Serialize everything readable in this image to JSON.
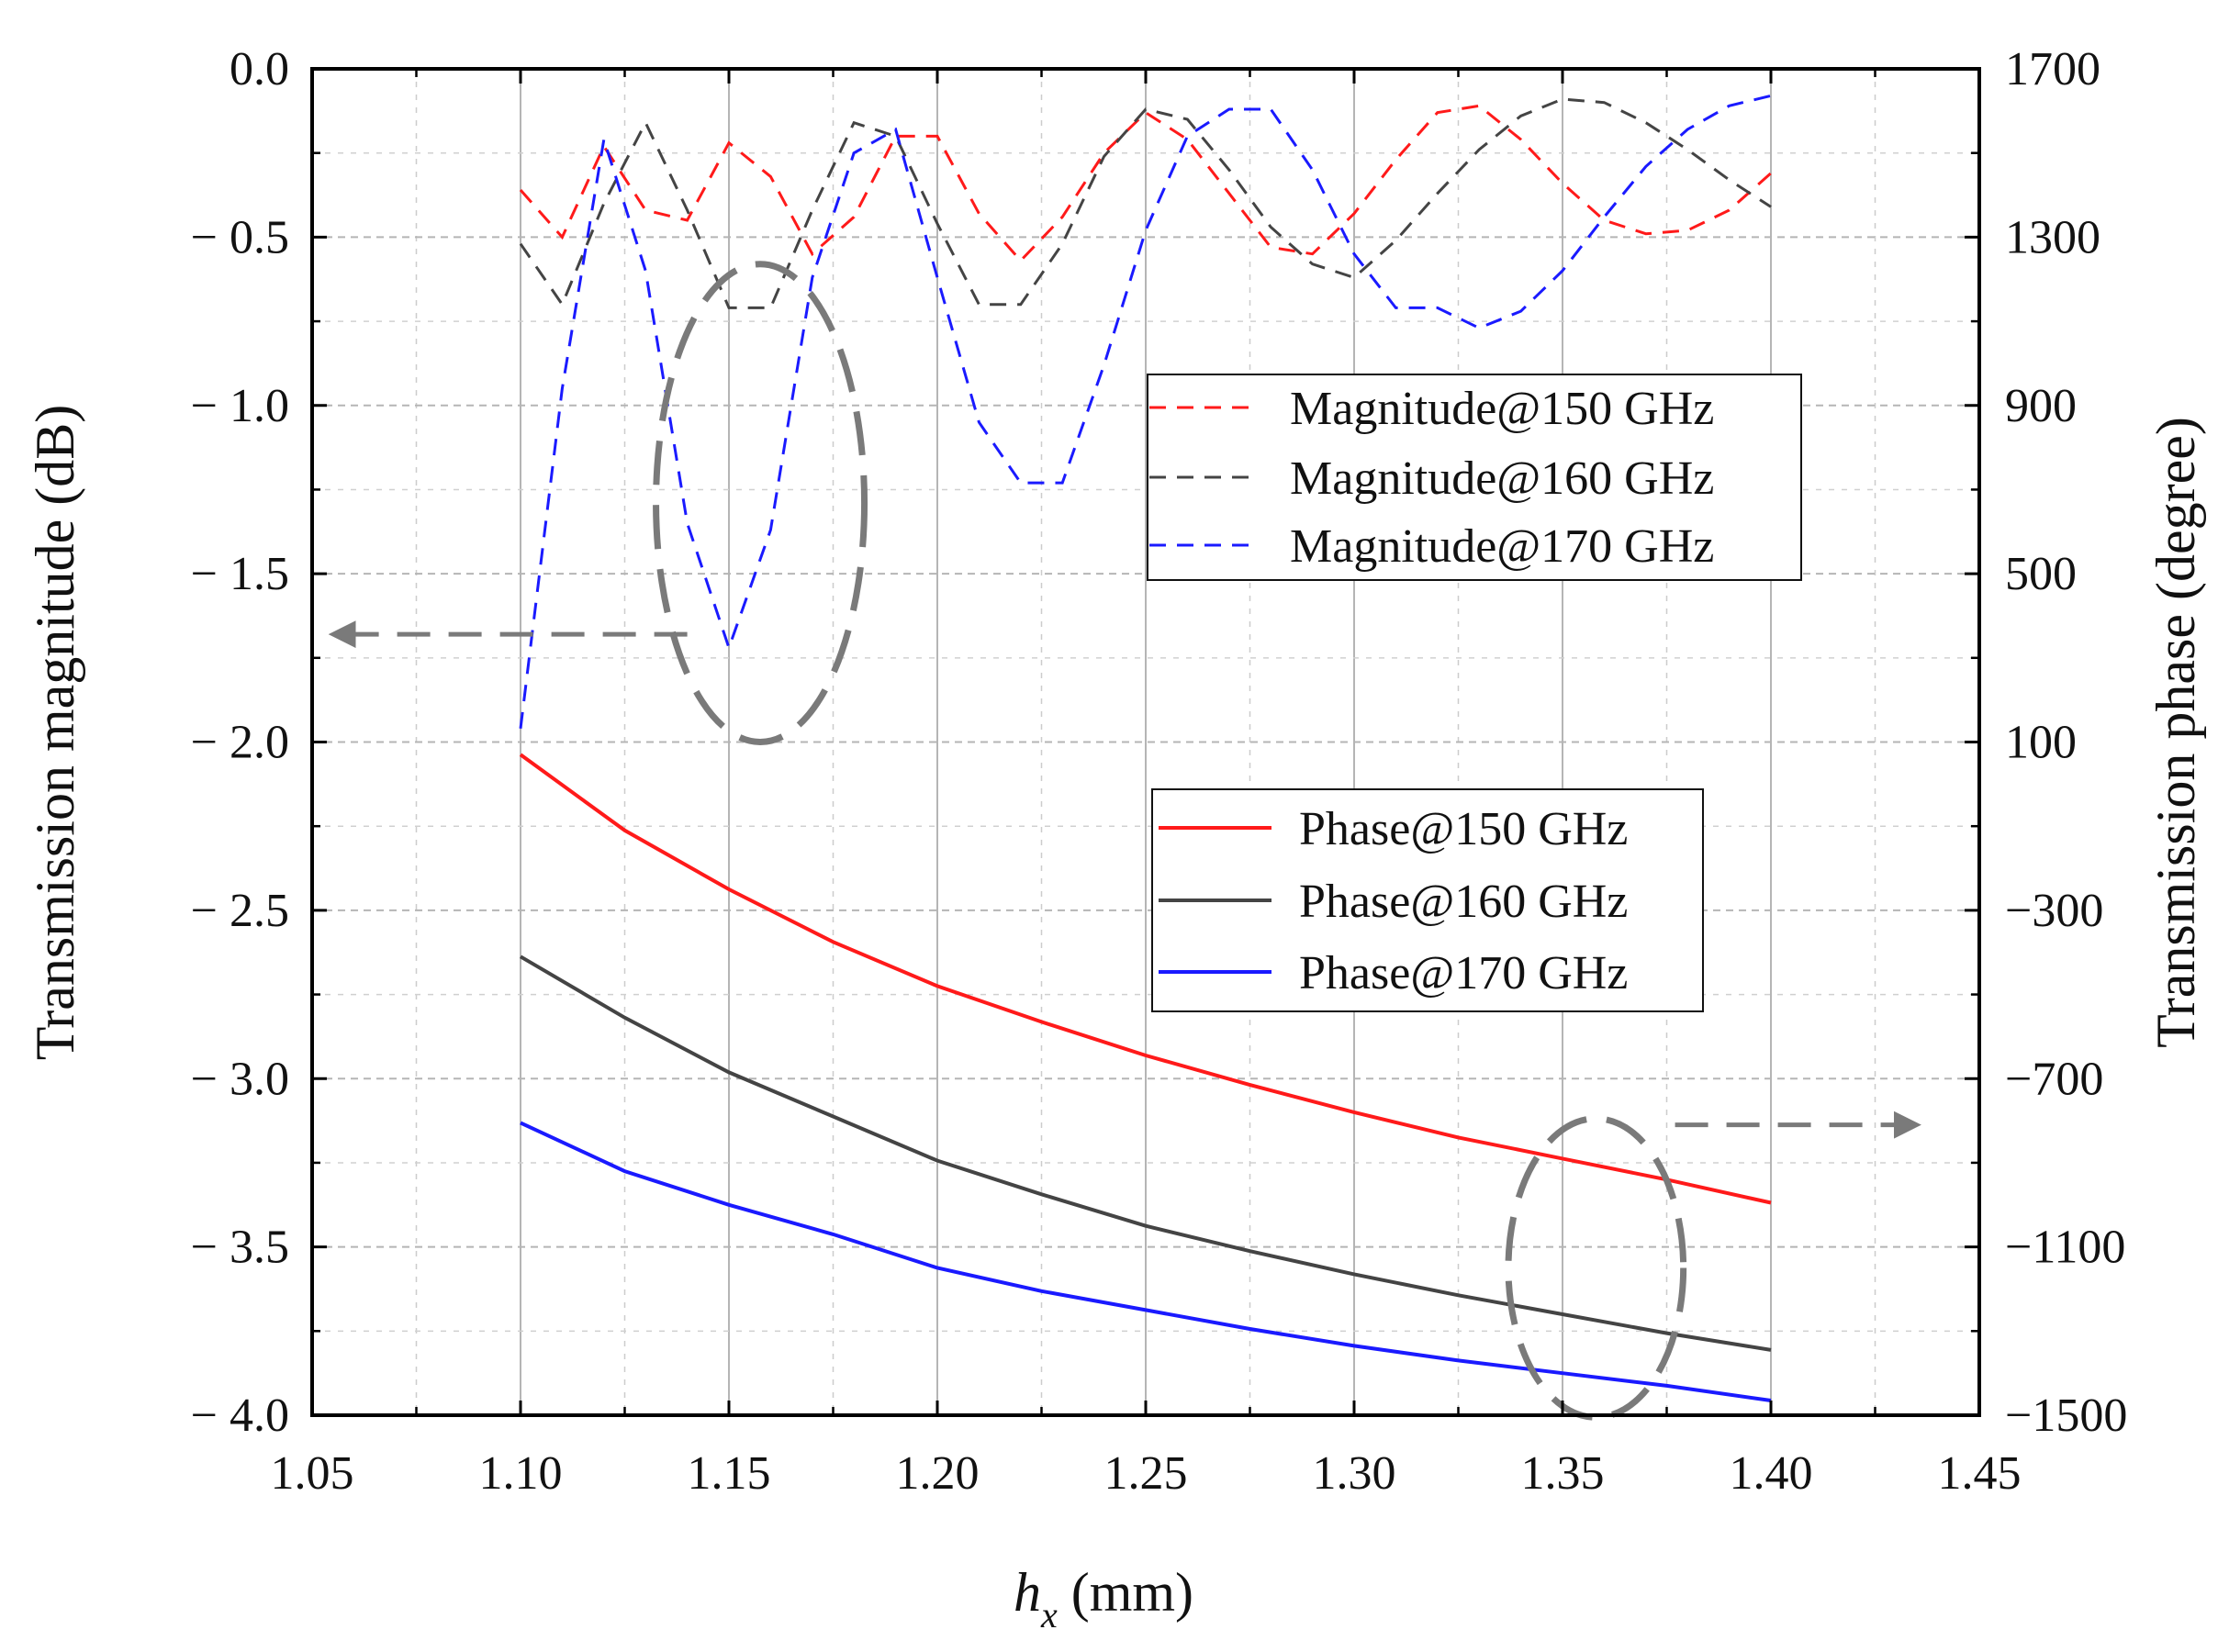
{
  "chart_data": {
    "type": "line",
    "xlabel_var": "h",
    "xlabel_sub": "x",
    "xlabel_unit": " (mm)",
    "ylabel_left": "Transmission magnitude (dB)",
    "ylabel_right": "Transmission phase (degree)",
    "xlim": [
      1.05,
      1.45
    ],
    "ylim_left": [
      -4.0,
      0.0
    ],
    "ylim_right": [
      -1500,
      1700
    ],
    "x_ticks": [
      "1.05",
      "1.10",
      "1.15",
      "1.20",
      "1.25",
      "1.30",
      "1.35",
      "1.40",
      "1.45"
    ],
    "y_left_ticks": [
      "0.0",
      "− 0.5",
      "− 1.0",
      "− 1.5",
      "− 2.0",
      "− 2.5",
      "− 3.0",
      "− 3.5",
      "− 4.0"
    ],
    "y_right_ticks": [
      "1700",
      "1300",
      "900",
      "500",
      "100",
      "−300",
      "−700",
      "−1100",
      "−1500"
    ],
    "grid": true,
    "legend_magnitude_position": "upper-right",
    "legend_phase_position": "middle-right",
    "magnitude_series": [
      {
        "name": "Magnitude@150 GHz",
        "color": "#ff1a1a",
        "style": "dashed",
        "x": [
          1.1,
          1.11,
          1.12,
          1.13,
          1.14,
          1.15,
          1.16,
          1.17,
          1.18,
          1.19,
          1.2,
          1.21,
          1.22,
          1.23,
          1.24,
          1.25,
          1.26,
          1.27,
          1.28,
          1.29,
          1.3,
          1.31,
          1.32,
          1.33,
          1.34,
          1.35,
          1.36,
          1.37,
          1.38,
          1.39,
          1.4
        ],
        "y": [
          -0.36,
          -0.5,
          -0.23,
          -0.42,
          -0.45,
          -0.22,
          -0.32,
          -0.55,
          -0.44,
          -0.2,
          -0.2,
          -0.43,
          -0.57,
          -0.44,
          -0.25,
          -0.13,
          -0.21,
          -0.37,
          -0.53,
          -0.55,
          -0.43,
          -0.27,
          -0.13,
          -0.11,
          -0.21,
          -0.34,
          -0.45,
          -0.49,
          -0.48,
          -0.42,
          -0.31
        ]
      },
      {
        "name": "Magnitude@160 GHz",
        "color": "#444444",
        "style": "dashed",
        "x": [
          1.1,
          1.11,
          1.12,
          1.13,
          1.14,
          1.15,
          1.16,
          1.17,
          1.18,
          1.19,
          1.2,
          1.21,
          1.22,
          1.23,
          1.24,
          1.25,
          1.26,
          1.27,
          1.28,
          1.29,
          1.3,
          1.31,
          1.32,
          1.33,
          1.34,
          1.35,
          1.36,
          1.37,
          1.38,
          1.39,
          1.4
        ],
        "y": [
          -0.52,
          -0.7,
          -0.4,
          -0.16,
          -0.42,
          -0.71,
          -0.71,
          -0.42,
          -0.16,
          -0.2,
          -0.46,
          -0.7,
          -0.7,
          -0.52,
          -0.26,
          -0.12,
          -0.15,
          -0.3,
          -0.47,
          -0.58,
          -0.62,
          -0.51,
          -0.37,
          -0.24,
          -0.14,
          -0.09,
          -0.1,
          -0.16,
          -0.24,
          -0.33,
          -0.41
        ]
      },
      {
        "name": "Magnitude@170 GHz",
        "color": "#1a1aff",
        "style": "dashed",
        "x": [
          1.1,
          1.11,
          1.12,
          1.13,
          1.14,
          1.15,
          1.16,
          1.17,
          1.18,
          1.19,
          1.2,
          1.21,
          1.22,
          1.23,
          1.24,
          1.25,
          1.26,
          1.27,
          1.28,
          1.29,
          1.3,
          1.31,
          1.32,
          1.33,
          1.34,
          1.35,
          1.36,
          1.37,
          1.38,
          1.39,
          1.4
        ],
        "y": [
          -1.96,
          -0.95,
          -0.21,
          -0.6,
          -1.35,
          -1.72,
          -1.37,
          -0.62,
          -0.25,
          -0.18,
          -0.62,
          -1.05,
          -1.23,
          -1.23,
          -0.88,
          -0.48,
          -0.2,
          -0.12,
          -0.12,
          -0.3,
          -0.55,
          -0.71,
          -0.71,
          -0.77,
          -0.72,
          -0.6,
          -0.44,
          -0.29,
          -0.18,
          -0.11,
          -0.08
        ]
      }
    ],
    "phase_series": [
      {
        "name": "Phase@150 GHz",
        "color": "#ff1a1a",
        "style": "solid",
        "x": [
          1.1,
          1.125,
          1.15,
          1.175,
          1.2,
          1.225,
          1.25,
          1.275,
          1.3,
          1.325,
          1.35,
          1.375,
          1.4
        ],
        "y": [
          70,
          -110,
          -250,
          -375,
          -480,
          -565,
          -645,
          -715,
          -780,
          -840,
          -890,
          -940,
          -995
        ]
      },
      {
        "name": "Phase@160 GHz",
        "color": "#444444",
        "style": "solid",
        "x": [
          1.1,
          1.125,
          1.15,
          1.175,
          1.2,
          1.225,
          1.25,
          1.275,
          1.3,
          1.325,
          1.35,
          1.375,
          1.4
        ],
        "y": [
          -410,
          -555,
          -685,
          -790,
          -895,
          -975,
          -1050,
          -1110,
          -1165,
          -1215,
          -1260,
          -1305,
          -1345
        ]
      },
      {
        "name": "Phase@170 GHz",
        "color": "#1a1aff",
        "style": "solid",
        "x": [
          1.1,
          1.125,
          1.15,
          1.175,
          1.2,
          1.225,
          1.25,
          1.275,
          1.3,
          1.325,
          1.35,
          1.375,
          1.4
        ],
        "y": [
          -805,
          -920,
          -1000,
          -1070,
          -1150,
          -1205,
          -1250,
          -1295,
          -1335,
          -1370,
          -1400,
          -1430,
          -1465
        ]
      }
    ],
    "annotations": [
      {
        "kind": "ellipse",
        "target": "magnitude",
        "cx": 1.1575,
        "cy": -1.29,
        "rx": 0.025,
        "ry": 0.71,
        "arrow": "left",
        "arrow_y": -1.68,
        "arrow_from_x": 1.14,
        "arrow_to_x": 1.055
      },
      {
        "kind": "ellipse",
        "target": "phase",
        "cx": 1.358,
        "cy": -1150,
        "rx": 0.021,
        "ry": 355,
        "arrow": "right",
        "arrow_y": -810,
        "arrow_from_x": 1.377,
        "arrow_to_x": 1.435
      }
    ]
  }
}
